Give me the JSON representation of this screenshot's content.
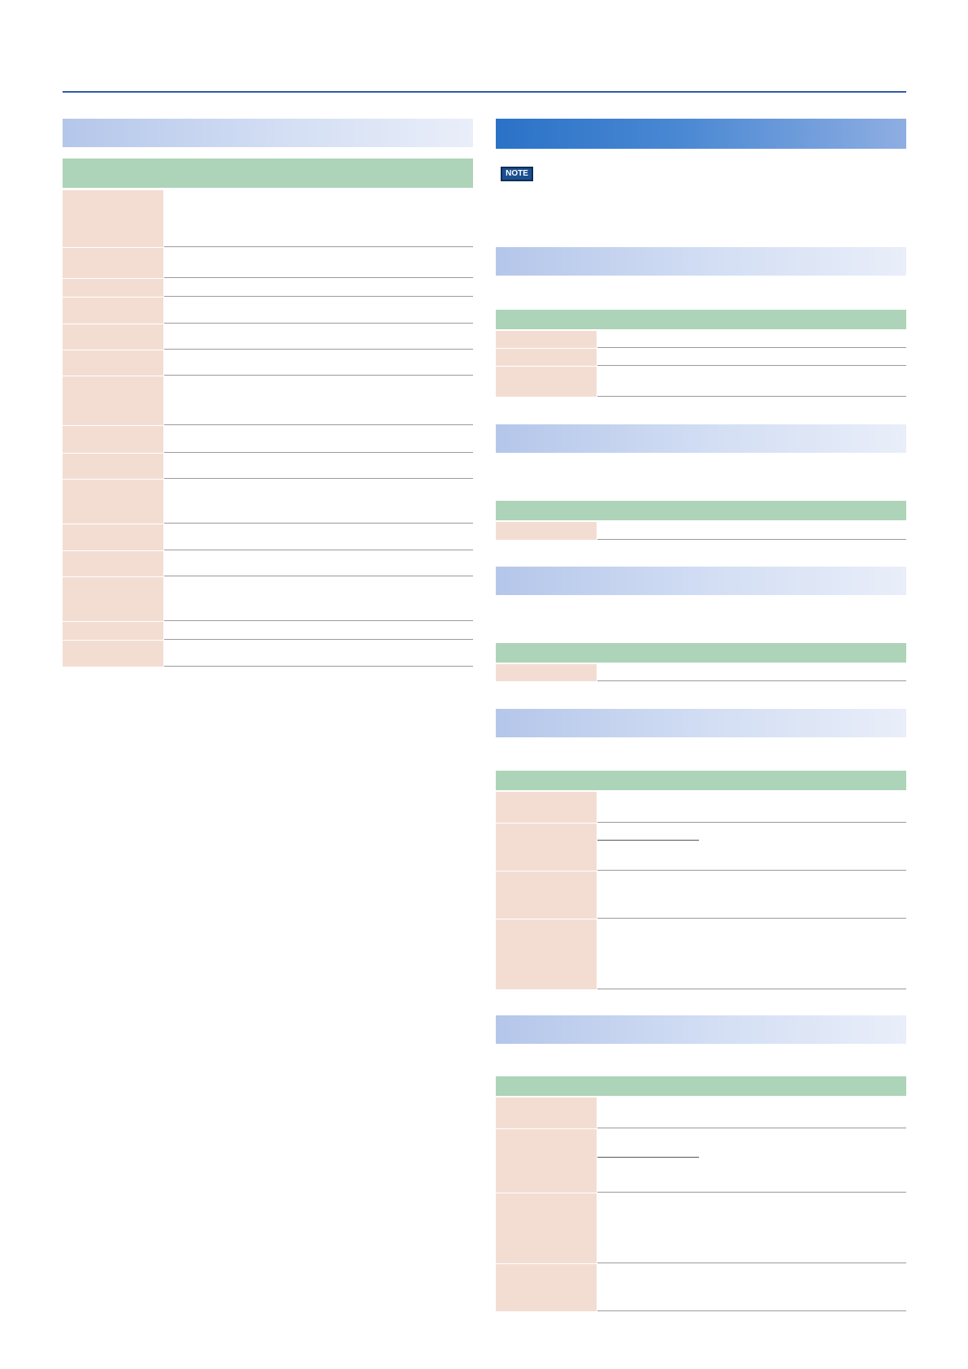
{
  "note": {
    "label": "NOTE"
  },
  "left": {
    "row_heights": [
      70,
      37,
      22,
      32,
      31,
      31,
      60,
      33,
      31,
      54,
      32,
      31,
      54,
      22,
      32
    ]
  },
  "right": {
    "sections": [
      {
        "rows": [
          21,
          21,
          37
        ]
      },
      {
        "rows": [
          22
        ]
      },
      {
        "rows": [
          21
        ]
      },
      {
        "rows": [
          38,
          58,
          58,
          86
        ]
      },
      {
        "rows": [
          38,
          78,
          86,
          58
        ]
      }
    ]
  }
}
